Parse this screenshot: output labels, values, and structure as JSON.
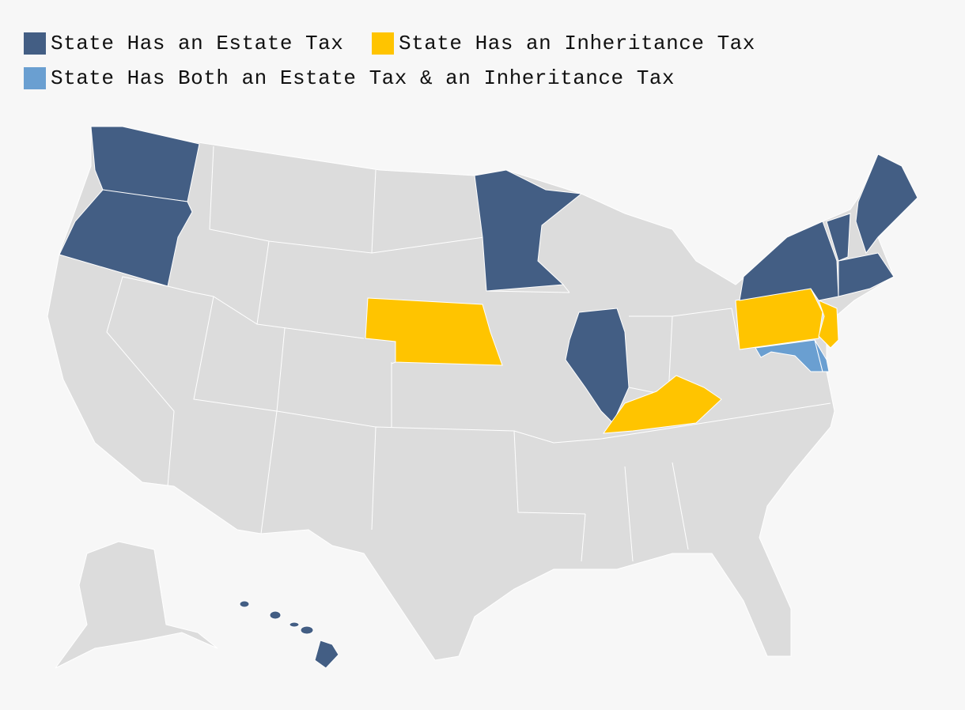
{
  "legend": {
    "items": [
      {
        "label": "State Has an Estate Tax",
        "color": "#435e84"
      },
      {
        "label": "State Has an Inheritance Tax",
        "color": "#ffc400"
      },
      {
        "label": "State Has Both an Estate Tax & an Inheritance Tax",
        "color": "#6a9fd1"
      }
    ]
  }
}
